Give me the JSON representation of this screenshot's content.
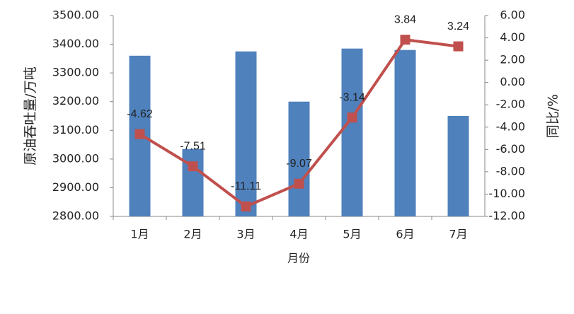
{
  "chart_data": {
    "type": "bar",
    "categories": [
      "1月",
      "2月",
      "3月",
      "4月",
      "5月",
      "6月",
      "7月"
    ],
    "x_label": "月份",
    "y_label": "原油吞吐量/万吨",
    "y2_label": "同比/%",
    "series": [
      {
        "type": "bar",
        "color": "#4f81bd",
        "values": [
          3360,
          3035,
          3375,
          3200,
          3385,
          3380,
          3150
        ]
      },
      {
        "type": "line",
        "axis": "y2",
        "color": "#c0504d",
        "values": [
          -4.62,
          -7.51,
          -11.11,
          -9.07,
          -3.14,
          3.84,
          3.24
        ]
      }
    ],
    "ylim": [
      2800,
      3500
    ],
    "yticks": [
      {
        "value": 2800,
        "label": "2800.00"
      },
      {
        "value": 2900,
        "label": "2900.00"
      },
      {
        "value": 3000,
        "label": "3000.00"
      },
      {
        "value": 3100,
        "label": "3100.00"
      },
      {
        "value": 3200,
        "label": "3200.00"
      },
      {
        "value": 3300,
        "label": "3300.00"
      },
      {
        "value": 3400,
        "label": "3400.00"
      },
      {
        "value": 3500,
        "label": "3500.00"
      }
    ],
    "y2lim": [
      -12,
      6
    ],
    "y2ticks": [
      {
        "value": -12,
        "label": "-12.00"
      },
      {
        "value": -10,
        "label": "-10.00"
      },
      {
        "value": -8,
        "label": "-8.00"
      },
      {
        "value": -6,
        "label": "-6.00"
      },
      {
        "value": -4,
        "label": "-4.00"
      },
      {
        "value": -2,
        "label": "-2.00"
      },
      {
        "value": 0,
        "label": "0.00"
      },
      {
        "value": 2,
        "label": "2.00"
      },
      {
        "value": 4,
        "label": "4.00"
      },
      {
        "value": 6,
        "label": "6.00"
      }
    ],
    "grid": false
  }
}
